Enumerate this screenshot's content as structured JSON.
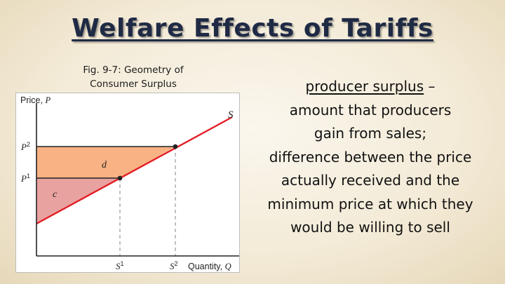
{
  "title": "Welfare Effects of Tariffs",
  "caption": {
    "line1": "Fig. 9-7: Geometry of",
    "line2": "Consumer Surplus"
  },
  "figure": {
    "y_axis_label_text": "Price, ",
    "y_axis_label_var": "P",
    "x_axis_label_text": "Quantity, ",
    "x_axis_label_var": "Q",
    "supply_label": "S",
    "price_labels": [
      {
        "base": "P",
        "sup": "2"
      },
      {
        "base": "P",
        "sup": "1"
      }
    ],
    "quantity_labels": [
      {
        "base": "S",
        "sup": "1"
      },
      {
        "base": "S",
        "sup": "2"
      }
    ],
    "area_labels": [
      "d",
      "c"
    ],
    "colors": {
      "area_d": "#f8b283",
      "area_c": "#e8a2a0",
      "supply_line": "#e31e25",
      "axes": "#222222",
      "guides": "#9a9a9a"
    }
  },
  "definition": {
    "term": "producer surplus",
    "dash": " –",
    "lines": [
      "amount that producers",
      "gain from sales;",
      "difference between the price",
      "actually received and the",
      "minimum price at which they",
      "would be willing to sell"
    ]
  }
}
